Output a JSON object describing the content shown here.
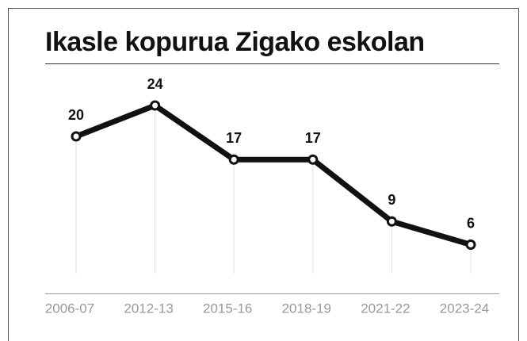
{
  "chart_data": {
    "type": "line",
    "title": "Ikasle kopurua Zigako eskolan",
    "categories": [
      "2006-07",
      "2012-13",
      "2015-16",
      "2018-19",
      "2021-22",
      "2023-24"
    ],
    "values": [
      20,
      24,
      17,
      17,
      9,
      6
    ],
    "color": "#111111"
  }
}
